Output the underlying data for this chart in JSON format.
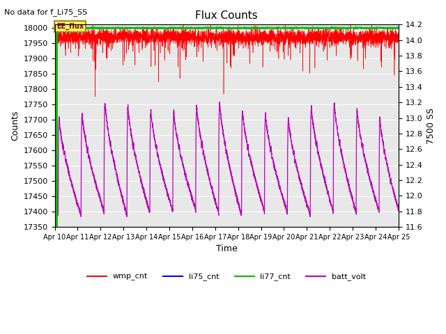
{
  "title": "Flux Counts",
  "no_data_text": "No data for f_Li75_SS",
  "xlabel": "Time",
  "ylabel_left": "Counts",
  "ylabel_right": "7500 SS",
  "ylim_left": [
    17350,
    18010
  ],
  "ylim_right": [
    11.6,
    14.2
  ],
  "yticks_left": [
    17350,
    17400,
    17450,
    17500,
    17550,
    17600,
    17650,
    17700,
    17750,
    17800,
    17850,
    17900,
    17950,
    18000
  ],
  "yticks_right": [
    11.6,
    11.8,
    12.0,
    12.2,
    12.4,
    12.6,
    12.8,
    13.0,
    13.2,
    13.4,
    13.6,
    13.8,
    14.0,
    14.2
  ],
  "xtick_labels": [
    "Apr 10",
    "Apr 11",
    "Apr 12",
    "Apr 13",
    "Apr 14",
    "Apr 15",
    "Apr 16",
    "Apr 17",
    "Apr 18",
    "Apr 19",
    "Apr 20",
    "Apr 21",
    "Apr 22",
    "Apr 23",
    "Apr 24",
    "Apr 25"
  ],
  "wmp_color": "#ff0000",
  "li75_color": "#0000ff",
  "li77_color": "#00bb00",
  "batt_color": "#bb00bb",
  "annotation_text": "EE_flux",
  "bg_color": "#e8e8e8",
  "legend_labels": [
    "wmp_cnt",
    "li75_cnt",
    "li77_cnt",
    "batt_volt"
  ],
  "legend_colors": [
    "#ff0000",
    "#0000ff",
    "#00bb00",
    "#bb00bb"
  ],
  "figsize": [
    6.4,
    4.8
  ],
  "dpi": 100
}
